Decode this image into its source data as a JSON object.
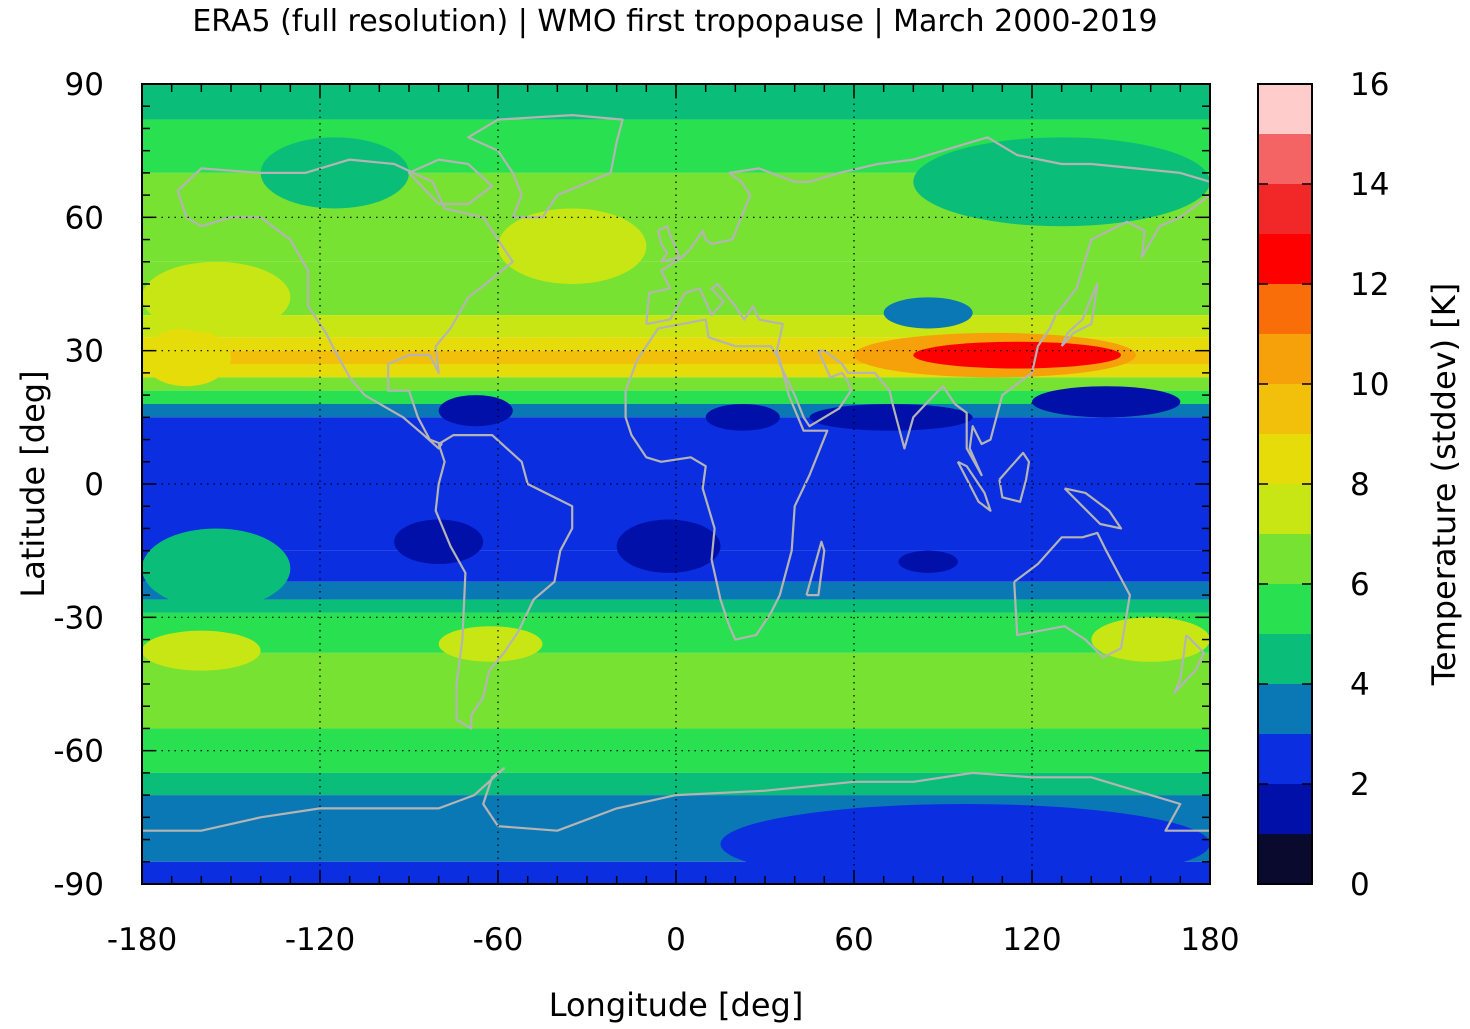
{
  "title": "ERA5 (full resolution) | WMO first tropopause | March 2000-2019",
  "chart_data": {
    "type": "heatmap",
    "title": "ERA5 (full resolution) | WMO first tropopause | March 2000-2019",
    "xlabel": "Longitude [deg]",
    "ylabel": "Latitude [deg]",
    "colorbar_label": "Temperature (stddev) [K]",
    "xlim": [
      -180,
      180
    ],
    "ylim": [
      -90,
      90
    ],
    "xticks": [
      "-180",
      "-120",
      "-60",
      "0",
      "60",
      "120",
      "180"
    ],
    "yticks": [
      "90",
      "60",
      "30",
      "0",
      "-30",
      "-60",
      "-90"
    ],
    "colorbar_ticks": [
      "16",
      "14",
      "12",
      "10",
      "8",
      "6",
      "4",
      "2",
      "0"
    ],
    "colorbar_range": [
      0,
      16
    ],
    "grid": true,
    "coastlines": true,
    "colorbar_levels": [
      {
        "from": 0,
        "to": 1,
        "color": "#0a0a2e"
      },
      {
        "from": 1,
        "to": 2,
        "color": "#0010a8"
      },
      {
        "from": 2,
        "to": 3,
        "color": "#0a2ee0"
      },
      {
        "from": 3,
        "to": 4,
        "color": "#0a78b4"
      },
      {
        "from": 4,
        "to": 5,
        "color": "#0abe7a"
      },
      {
        "from": 5,
        "to": 6,
        "color": "#28e050"
      },
      {
        "from": 6,
        "to": 7,
        "color": "#78e232"
      },
      {
        "from": 7,
        "to": 8,
        "color": "#c8e614"
      },
      {
        "from": 8,
        "to": 9,
        "color": "#e6dc0a"
      },
      {
        "from": 9,
        "to": 10,
        "color": "#f2c00a"
      },
      {
        "from": 10,
        "to": 11,
        "color": "#f6a00a"
      },
      {
        "from": 11,
        "to": 12,
        "color": "#fa6e0a"
      },
      {
        "from": 12,
        "to": 13,
        "color": "#ff0000"
      },
      {
        "from": 13,
        "to": 14,
        "color": "#f22828"
      },
      {
        "from": 14,
        "to": 15,
        "color": "#f46464"
      },
      {
        "from": 15,
        "to": 16,
        "color": "#ffcccc"
      }
    ],
    "zonal_bands": [
      {
        "lat_from": 90,
        "lat_to": 82,
        "value": 4.5
      },
      {
        "lat_from": 82,
        "lat_to": 70,
        "value": 5.5
      },
      {
        "lat_from": 70,
        "lat_to": 50,
        "value": 6.5
      },
      {
        "lat_from": 50,
        "lat_to": 38,
        "value": 6.5
      },
      {
        "lat_from": 38,
        "lat_to": 33,
        "value": 7.5
      },
      {
        "lat_from": 33,
        "lat_to": 30,
        "value": 8.5
      },
      {
        "lat_from": 30,
        "lat_to": 27,
        "value": 9.5
      },
      {
        "lat_from": 27,
        "lat_to": 24,
        "value": 8.5
      },
      {
        "lat_from": 24,
        "lat_to": 21,
        "value": 6.5
      },
      {
        "lat_from": 21,
        "lat_to": 18,
        "value": 5.5
      },
      {
        "lat_from": 18,
        "lat_to": 15,
        "value": 3.5
      },
      {
        "lat_from": 15,
        "lat_to": -15,
        "value": 2.5
      },
      {
        "lat_from": -15,
        "lat_to": -22,
        "value": 2.5
      },
      {
        "lat_from": -22,
        "lat_to": -26,
        "value": 3.5
      },
      {
        "lat_from": -26,
        "lat_to": -29,
        "value": 4.5
      },
      {
        "lat_from": -29,
        "lat_to": -38,
        "value": 5.5
      },
      {
        "lat_from": -38,
        "lat_to": -55,
        "value": 6.5
      },
      {
        "lat_from": -55,
        "lat_to": -65,
        "value": 5.5
      },
      {
        "lat_from": -65,
        "lat_to": -70,
        "value": 4.5
      },
      {
        "lat_from": -70,
        "lat_to": -85,
        "value": 3.5
      },
      {
        "lat_from": -85,
        "lat_to": -90,
        "value": 2.5
      }
    ],
    "regions": [
      {
        "name": "west-pacific-jet",
        "lon_from": -180,
        "lon_to": -150,
        "lat_from": 35,
        "lat_to": 22,
        "value": 8.5
      },
      {
        "name": "north-pacific-yellow",
        "lon_from": -180,
        "lon_to": -130,
        "lat_from": 50,
        "lat_to": 34,
        "value": 7.5
      },
      {
        "name": "north-atlantic-yellow",
        "lon_from": -60,
        "lon_to": -10,
        "lat_from": 62,
        "lat_to": 45,
        "value": 7.5
      },
      {
        "name": "asian-jet-orange",
        "lon_from": 60,
        "lon_to": 155,
        "lat_from": 34,
        "lat_to": 24,
        "value": 10.5
      },
      {
        "name": "asian-jet-red",
        "lon_from": 80,
        "lon_to": 150,
        "lat_from": 32,
        "lat_to": 26,
        "value": 12.5
      },
      {
        "name": "arctic-canada",
        "lon_from": -140,
        "lon_to": -90,
        "lat_from": 78,
        "lat_to": 62,
        "value": 4.5
      },
      {
        "name": "siberia",
        "lon_from": 80,
        "lon_to": 180,
        "lat_from": 78,
        "lat_to": 58,
        "value": 4.5
      },
      {
        "name": "central-asia-low",
        "lon_from": 70,
        "lon_to": 100,
        "lat_from": 42,
        "lat_to": 35,
        "value": 3.5
      },
      {
        "name": "tropical-caribbean-min",
        "lon_from": -80,
        "lon_to": -55,
        "lat_from": 20,
        "lat_to": 13,
        "value": 1.5
      },
      {
        "name": "tropical-africa-min",
        "lon_from": 10,
        "lon_to": 35,
        "lat_from": 18,
        "lat_to": 12,
        "value": 1.5
      },
      {
        "name": "tropical-arabia-min",
        "lon_from": 45,
        "lon_to": 100,
        "lat_from": 18,
        "lat_to": 12,
        "value": 1.5
      },
      {
        "name": "tropical-wpac-min",
        "lon_from": 120,
        "lon_to": 170,
        "lat_from": 22,
        "lat_to": 15,
        "value": 1.5
      },
      {
        "name": "south-america-min",
        "lon_from": -95,
        "lon_to": -65,
        "lat_from": -8,
        "lat_to": -18,
        "value": 1.5
      },
      {
        "name": "south-atlantic-min",
        "lon_from": -20,
        "lon_to": 15,
        "lat_from": -8,
        "lat_to": -20,
        "value": 1.5
      },
      {
        "name": "indian-ocean-min",
        "lon_from": 75,
        "lon_to": 95,
        "lat_from": -15,
        "lat_to": -20,
        "value": 1.5
      },
      {
        "name": "south-pacific-teal",
        "lon_from": -180,
        "lon_to": -130,
        "lat_from": -10,
        "lat_to": -28,
        "value": 4.5
      },
      {
        "name": "south-atlantic-yellow",
        "lon_from": -80,
        "lon_to": -45,
        "lat_from": -32,
        "lat_to": -40,
        "value": 7.5
      },
      {
        "name": "south-pacific-yellow",
        "lon_from": -180,
        "lon_to": -140,
        "lat_from": -33,
        "lat_to": -42,
        "value": 7.5
      },
      {
        "name": "australia-yellow",
        "lon_from": 140,
        "lon_to": 180,
        "lat_from": -30,
        "lat_to": -40,
        "value": 7.5
      },
      {
        "name": "antarctic-blue",
        "lon_from": 15,
        "lon_to": 180,
        "lat_from": -72,
        "lat_to": -90,
        "value": 2.5
      }
    ]
  }
}
